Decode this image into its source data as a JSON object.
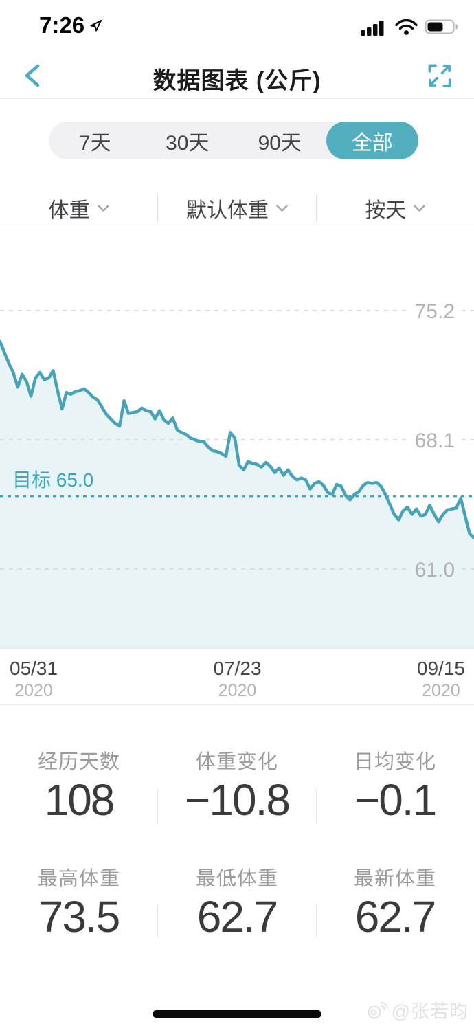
{
  "status_bar": {
    "time": "7:26"
  },
  "header": {
    "title": "数据图表 (公斤)"
  },
  "range_tabs": {
    "options": [
      {
        "label": "7天"
      },
      {
        "label": "30天"
      },
      {
        "label": "90天"
      },
      {
        "label": "全部"
      }
    ],
    "selected": "全部"
  },
  "filter_bar": {
    "metric": "体重",
    "source": "默认体重",
    "granularity": "按天"
  },
  "chart_data": {
    "type": "line",
    "title": "数据图表 (公斤)",
    "unit": "公斤",
    "series": [
      {
        "name": "体重",
        "values": [
          73.5,
          72.9,
          72.3,
          71.8,
          71.0,
          71.7,
          71.3,
          70.5,
          71.5,
          71.8,
          71.4,
          71.5,
          71.9,
          70.8,
          69.8,
          70.7,
          70.6,
          70.75,
          70.8,
          70.9,
          70.7,
          70.45,
          70.3,
          69.9,
          69.5,
          69.25,
          69.0,
          68.85,
          70.25,
          69.55,
          69.6,
          69.65,
          69.85,
          69.7,
          69.65,
          69.25,
          69.7,
          69.2,
          69.0,
          69.3,
          68.65,
          68.5,
          68.4,
          68.2,
          68.1,
          68.0,
          68.0,
          67.7,
          67.5,
          67.45,
          67.35,
          67.2,
          68.5,
          68.2,
          66.7,
          66.45,
          66.9,
          66.8,
          66.75,
          66.6,
          66.85,
          66.65,
          66.3,
          66.55,
          66.15,
          66.45,
          66.1,
          65.9,
          66.0,
          65.9,
          65.4,
          65.7,
          65.8,
          65.6,
          65.2,
          65.1,
          65.65,
          65.55,
          65.05,
          64.8,
          65.1,
          65.25,
          65.6,
          65.75,
          65.7,
          65.75,
          65.55,
          65.1,
          64.55,
          64.0,
          63.7,
          64.2,
          64.4,
          64.0,
          64.3,
          63.9,
          64.0,
          64.5,
          64.0,
          63.6,
          64.0,
          64.25,
          64.3,
          64.35,
          64.9,
          63.9,
          62.95,
          62.7
        ]
      }
    ],
    "x_ticks": [
      {
        "date": "05/31",
        "year": "2020"
      },
      {
        "date": "07/23",
        "year": "2020"
      },
      {
        "date": "09/15",
        "year": "2020"
      }
    ],
    "y_ticks": [
      75.2,
      68.1,
      61.0
    ],
    "ylim": [
      56.7,
      79.8
    ],
    "goal": {
      "label": "目标",
      "value": 65.0
    },
    "grid": "horizontal-dashed",
    "legend": "none",
    "colors": {
      "line": "#48a3b6",
      "fill": "#e9f4f7",
      "goal": "#3ba6be",
      "grid": "#dbdbdb",
      "tick_label": "#b3b3b3"
    }
  },
  "stats": {
    "rows": [
      [
        {
          "label": "经历天数",
          "value": "108"
        },
        {
          "label": "体重变化",
          "value": "−10.8"
        },
        {
          "label": "日均变化",
          "value": "−0.1"
        }
      ],
      [
        {
          "label": "最高体重",
          "value": "73.5"
        },
        {
          "label": "最低体重",
          "value": "62.7"
        },
        {
          "label": "最新体重",
          "value": "62.7"
        }
      ]
    ]
  },
  "footer": {
    "watermark": "@张若昀"
  },
  "ui_colors": {
    "accent": "#53aec0",
    "segment_bg": "#f1f1f3",
    "text_dark": "#3a3a3a",
    "text_gray": "#9b9b9b"
  }
}
